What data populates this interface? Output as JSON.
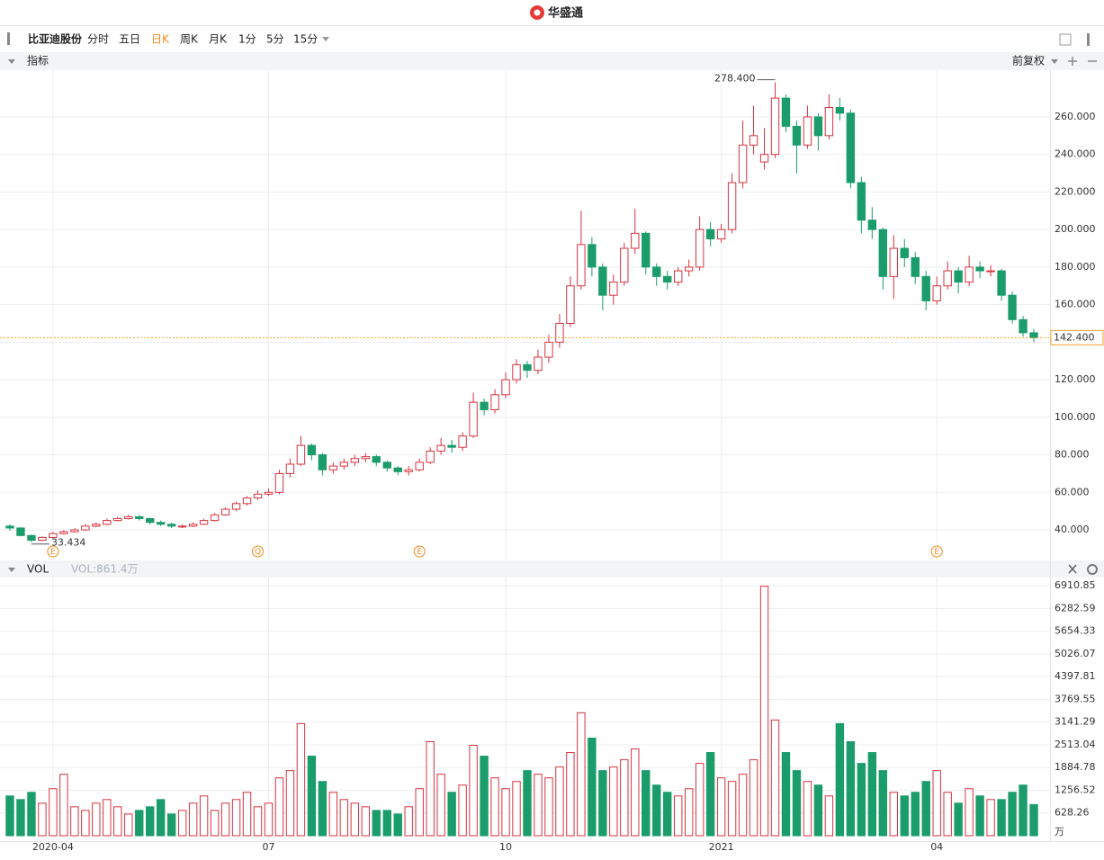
{
  "app": {
    "logo": "华盛通",
    "stock_name": "比亚迪股份",
    "periods": [
      "分时",
      "五日",
      "日K",
      "周K",
      "月K",
      "1分",
      "5分",
      "15分"
    ],
    "indicator": "指标",
    "adjust": "前复权",
    "vol_title": "VOL",
    "vol_value_label": "VOL:861.4万"
  },
  "chart_data": [
    {
      "type": "candlestick",
      "up_color": "#d6343f",
      "down_color": "#1a9c6b",
      "grid": true,
      "ylim": [
        24.2,
        284.9
      ],
      "yticks": [
        {
          "value": 40,
          "label": "40.000"
        },
        {
          "value": 60,
          "label": "60.000"
        },
        {
          "value": 80,
          "label": "80.000"
        },
        {
          "value": 100,
          "label": "100.000"
        },
        {
          "value": 120,
          "label": "120.000"
        },
        {
          "value": 140,
          "label": "140.000"
        },
        {
          "value": 160,
          "label": "160.000"
        },
        {
          "value": 180,
          "label": "180.000"
        },
        {
          "value": 200,
          "label": "200.000"
        },
        {
          "value": 220,
          "label": "220.000"
        },
        {
          "value": 240,
          "label": "240.000"
        },
        {
          "value": 260,
          "label": "260.000"
        }
      ],
      "open": [
        42,
        41,
        37,
        34.5,
        36,
        38,
        39,
        40,
        42,
        43,
        45,
        46,
        47,
        46,
        44,
        43,
        42,
        42,
        43,
        45,
        48,
        51,
        54,
        57,
        59,
        60,
        70,
        75,
        85,
        80,
        72,
        74,
        76,
        78,
        79,
        76,
        73,
        71,
        72,
        76,
        82,
        85,
        84,
        90,
        108,
        104,
        112,
        120,
        128,
        125,
        132,
        140,
        150,
        170,
        192,
        180,
        165,
        172,
        190,
        198,
        180,
        175,
        172,
        178,
        180,
        200,
        195,
        200,
        225,
        245,
        236,
        240,
        270,
        255,
        245,
        260,
        250,
        265,
        262,
        225,
        205,
        200,
        175,
        190,
        185,
        175,
        162,
        170,
        178,
        172,
        180,
        178,
        178,
        165,
        152,
        145
      ],
      "high": [
        43,
        41.5,
        37.5,
        36.5,
        39,
        40,
        41,
        43,
        44,
        46,
        47,
        48,
        48,
        46.5,
        45,
        44,
        43,
        44,
        46,
        49,
        52,
        55,
        58,
        61,
        62,
        72,
        78,
        90,
        86,
        81,
        76,
        78,
        80,
        81,
        80,
        77,
        74,
        74,
        78,
        84,
        89,
        88,
        92,
        113,
        110,
        115,
        124,
        131,
        130,
        136,
        144,
        155,
        175,
        210,
        196,
        182,
        176,
        193,
        211,
        199,
        182,
        178,
        180,
        184,
        207,
        204,
        203,
        230,
        258,
        266,
        254,
        278.4,
        272,
        258,
        266,
        262,
        272,
        270,
        264,
        228,
        212,
        201,
        197,
        195,
        188,
        178,
        175,
        183,
        180,
        186,
        183,
        181,
        179,
        167,
        154,
        147
      ],
      "low": [
        39.5,
        36.5,
        33.434,
        34,
        35.5,
        37.5,
        38.5,
        39.5,
        41.5,
        42.5,
        44.5,
        45.5,
        45,
        43,
        42,
        41,
        41,
        41.5,
        42.5,
        44.5,
        47.5,
        50,
        53,
        56,
        58,
        59,
        68,
        74,
        77,
        69,
        70,
        72,
        74,
        76,
        74,
        71,
        69,
        69,
        71,
        75,
        80,
        81,
        82,
        89,
        101,
        102,
        110,
        118,
        121,
        123,
        129,
        137,
        148,
        168,
        175,
        157,
        160,
        170,
        187,
        176,
        170,
        168,
        170,
        175,
        178,
        191,
        193,
        198,
        222,
        240,
        232,
        238,
        252,
        230,
        243,
        242,
        248,
        258,
        222,
        198,
        195,
        168,
        163,
        180,
        171,
        157,
        160,
        168,
        166,
        170,
        174,
        175,
        162,
        150,
        143,
        140
      ],
      "close": [
        41,
        37,
        34.5,
        36,
        38,
        39,
        40,
        42,
        43,
        45,
        46,
        47,
        46,
        44,
        43,
        42,
        42,
        43,
        45,
        48,
        51,
        54,
        57,
        59,
        60,
        70,
        75,
        85,
        80,
        72,
        74,
        76,
        78,
        79,
        76,
        73,
        71,
        72,
        76,
        82,
        85,
        84,
        90,
        108,
        104,
        112,
        120,
        128,
        125,
        132,
        140,
        150,
        170,
        192,
        180,
        165,
        172,
        190,
        198,
        180,
        175,
        172,
        178,
        180,
        200,
        195,
        200,
        225,
        245,
        250,
        240,
        270,
        255,
        245,
        260,
        250,
        265,
        262,
        225,
        205,
        200,
        175,
        190,
        185,
        175,
        162,
        170,
        178,
        172,
        180,
        178,
        178,
        165,
        152,
        145,
        142.4
      ],
      "high_label": {
        "value": 278.4,
        "label": "278.400"
      },
      "low_label": {
        "value": 33.434,
        "label": "33.434"
      },
      "last_label": {
        "value": 142.4,
        "label": "142.400"
      },
      "events": [
        null,
        null,
        null,
        null,
        "E",
        null,
        null,
        null,
        null,
        null,
        null,
        null,
        null,
        null,
        null,
        null,
        null,
        null,
        null,
        null,
        null,
        null,
        null,
        "Q",
        null,
        null,
        null,
        null,
        null,
        null,
        null,
        null,
        null,
        null,
        null,
        null,
        null,
        null,
        "E",
        null,
        null,
        null,
        null,
        null,
        null,
        null,
        null,
        null,
        null,
        null,
        null,
        null,
        null,
        null,
        null,
        null,
        null,
        null,
        null,
        null,
        null,
        null,
        null,
        null,
        null,
        null,
        null,
        null,
        null,
        null,
        null,
        null,
        null,
        null,
        null,
        null,
        null,
        null,
        null,
        null,
        null,
        null,
        null,
        null,
        null,
        null,
        "E",
        null,
        null,
        null,
        null,
        null,
        null,
        null,
        null,
        null
      ]
    },
    {
      "type": "bar",
      "unit": "万",
      "grid": true,
      "ylim": [
        0,
        7140
      ],
      "yticks": [
        628.26,
        1256.52,
        1884.78,
        2513.04,
        3141.29,
        3769.55,
        4397.81,
        5026.07,
        5654.33,
        6282.59,
        6910.85
      ],
      "categories": [
        null,
        null,
        null,
        null,
        "2020-04",
        null,
        null,
        null,
        null,
        null,
        null,
        null,
        null,
        null,
        null,
        null,
        null,
        null,
        null,
        null,
        null,
        null,
        null,
        null,
        "07",
        null,
        null,
        null,
        null,
        null,
        null,
        null,
        null,
        null,
        null,
        null,
        null,
        null,
        null,
        null,
        null,
        null,
        null,
        null,
        null,
        null,
        "10",
        null,
        null,
        null,
        null,
        null,
        null,
        null,
        null,
        null,
        null,
        null,
        null,
        null,
        null,
        null,
        null,
        null,
        null,
        null,
        "2021",
        null,
        null,
        null,
        null,
        null,
        null,
        null,
        null,
        null,
        null,
        null,
        null,
        null,
        null,
        null,
        null,
        null,
        null,
        null,
        "04",
        null,
        null,
        null,
        null,
        null,
        null,
        null,
        null,
        null
      ],
      "values": [
        1100,
        1000,
        1200,
        900,
        1300,
        1700,
        800,
        700,
        900,
        1000,
        800,
        600,
        700,
        800,
        1000,
        600,
        700,
        900,
        1100,
        700,
        900,
        1000,
        1200,
        800,
        900,
        1600,
        1800,
        3100,
        2200,
        1500,
        1200,
        1000,
        900,
        800,
        700,
        700,
        600,
        800,
        1300,
        2600,
        1700,
        1200,
        1400,
        2500,
        2200,
        1600,
        1300,
        1500,
        1800,
        1700,
        1600,
        1900,
        2300,
        3400,
        2700,
        1800,
        1900,
        2100,
        2400,
        1800,
        1400,
        1200,
        1100,
        1300,
        2000,
        2300,
        1600,
        1500,
        1700,
        2100,
        6900,
        3200,
        2300,
        1800,
        1500,
        1400,
        1100,
        3100,
        2600,
        2000,
        2300,
        1800,
        1200,
        1100,
        1200,
        1500,
        1800,
        1200,
        900,
        1300,
        1100,
        1000,
        1000,
        1200,
        1400,
        861.4
      ]
    }
  ]
}
